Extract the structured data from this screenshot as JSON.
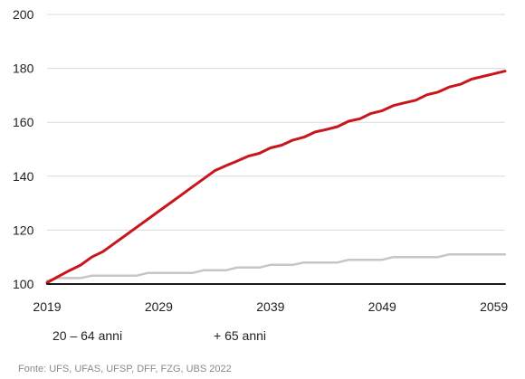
{
  "chart_data": {
    "type": "line",
    "title": "",
    "xlabel": "",
    "ylabel": "",
    "xlim": [
      2019,
      2060
    ],
    "ylim": [
      100,
      200
    ],
    "y_ticks": [
      100,
      120,
      140,
      160,
      180,
      200
    ],
    "x_ticks": [
      2019,
      2029,
      2039,
      2049,
      2059
    ],
    "y_tick_labels": [
      "100",
      "120",
      "140",
      "160",
      "180",
      "200"
    ],
    "x_tick_labels": [
      "2019",
      "2029",
      "2039",
      "2049",
      "2059"
    ],
    "grid": "horizontal",
    "legend_position": "bottom",
    "series": [
      {
        "name": "20 – 64 anni",
        "color": "#1a1a1a",
        "x": [
          2019,
          2060
        ],
        "values": [
          100,
          100
        ]
      },
      {
        "name": "+ 65 anni",
        "color": "#c8161d",
        "x": [
          2019,
          2020,
          2021,
          2022,
          2023,
          2024,
          2025,
          2026,
          2027,
          2028,
          2029,
          2030,
          2031,
          2032,
          2033,
          2034,
          2035,
          2036,
          2037,
          2038,
          2039,
          2040,
          2041,
          2042,
          2043,
          2044,
          2045,
          2046,
          2047,
          2048,
          2049,
          2050,
          2051,
          2052,
          2053,
          2054,
          2055,
          2056,
          2057,
          2058,
          2059,
          2060
        ],
        "values": [
          100.5,
          102.8,
          105,
          107,
          110,
          112,
          115,
          118,
          121,
          124,
          127,
          130,
          133,
          136,
          139,
          142,
          143.9,
          145.6,
          147.4,
          148.5,
          150.5,
          151.5,
          153.4,
          154.5,
          156.4,
          157.3,
          158.4,
          160.4,
          161.3,
          163.3,
          164.3,
          166.2,
          167.2,
          168.2,
          170.2,
          171.2,
          173.1,
          174.1,
          176,
          177,
          178,
          179
        ]
      },
      {
        "name": "",
        "color": "#c6c6c6",
        "x": [
          2019,
          2020,
          2021,
          2022,
          2023,
          2024,
          2025,
          2026,
          2027,
          2028,
          2029,
          2030,
          2031,
          2032,
          2033,
          2034,
          2035,
          2036,
          2037,
          2038,
          2039,
          2040,
          2041,
          2042,
          2043,
          2044,
          2045,
          2046,
          2047,
          2048,
          2049,
          2050,
          2051,
          2052,
          2053,
          2054,
          2055,
          2056,
          2057,
          2058,
          2059,
          2060
        ],
        "values": [
          101.2,
          102.2,
          102.2,
          102.2,
          103.1,
          103.1,
          103.1,
          103.1,
          103.1,
          104.1,
          104.1,
          104.1,
          104.1,
          104.1,
          105.1,
          105.1,
          105.1,
          106.1,
          106.1,
          106.1,
          107.1,
          107.1,
          107.1,
          108,
          108,
          108,
          108,
          109,
          109,
          109,
          109,
          110,
          110,
          110,
          110,
          110,
          111,
          111,
          111,
          111,
          111,
          111
        ]
      }
    ]
  },
  "legend": [
    {
      "label": "20 – 64 anni",
      "color": "#1a1a1a"
    },
    {
      "label": "+ 65 anni",
      "color": "#c8161d"
    }
  ],
  "source": "Fonte: UFS, UFAS, UFSP, DFF, FZG, UBS 2022"
}
